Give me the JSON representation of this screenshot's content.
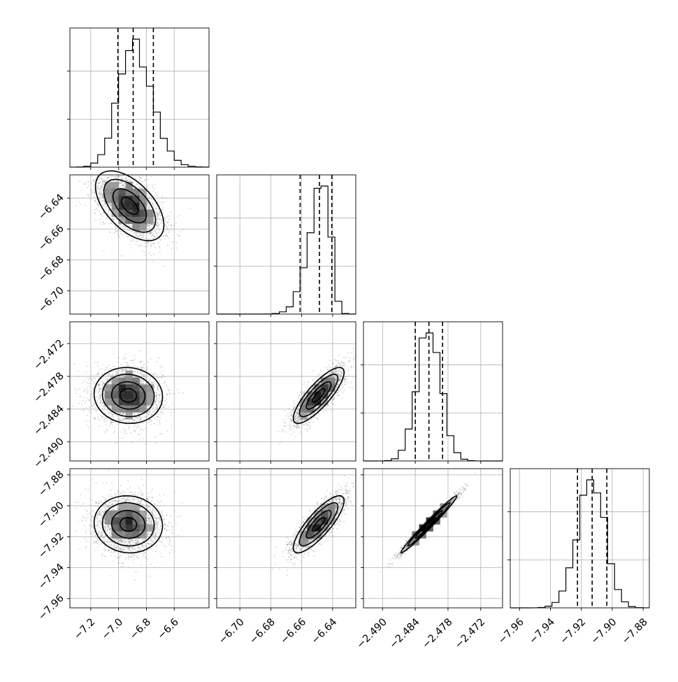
{
  "chart_data": {
    "type": "corner",
    "n_params": 4,
    "grid": true,
    "params": [
      {
        "range": [
          -7.35,
          -6.35
        ],
        "ticks": [
          -7.2,
          -7.0,
          -6.8,
          -6.6
        ],
        "tick_labels": [
          "−7.2",
          "−7.0",
          "−6.8",
          "−6.6"
        ],
        "quantiles": [
          -7.005,
          -6.895,
          -6.75
        ],
        "hist_peak": -6.9,
        "hist_sigma_left": 0.105,
        "hist_sigma_right": 0.135
      },
      {
        "range": [
          -6.715,
          -6.625
        ],
        "ticks": [
          -6.7,
          -6.68,
          -6.66,
          -6.64
        ],
        "tick_labels": [
          "−6.70",
          "−6.68",
          "−6.66",
          "−6.64"
        ],
        "quantiles": [
          -6.661,
          -6.6485,
          -6.6405
        ],
        "hist_peak": -6.645,
        "hist_sigma_left": 0.0095,
        "hist_sigma_right": 0.004
      },
      {
        "range": [
          -2.4935,
          -2.468
        ],
        "ticks": [
          -2.49,
          -2.484,
          -2.478,
          -2.472
        ],
        "tick_labels": [
          "−2.490",
          "−2.484",
          "−2.478",
          "−2.472"
        ],
        "quantiles": [
          -2.484,
          -2.4815,
          -2.479
        ],
        "hist_peak": -2.4815,
        "hist_sigma_left": 0.0022,
        "hist_sigma_right": 0.0022
      },
      {
        "range": [
          -7.966,
          -7.876
        ],
        "ticks": [
          -7.96,
          -7.94,
          -7.92,
          -7.9,
          -7.88
        ],
        "tick_labels": [
          "−7.96",
          "−7.94",
          "−7.92",
          "−7.90",
          "−7.88"
        ],
        "quantiles": [
          -7.9225,
          -7.913,
          -7.9035
        ],
        "hist_peak": -7.913,
        "hist_sigma_left": 0.0095,
        "hist_sigma_right": 0.0085
      }
    ],
    "pairs": [
      {
        "row": 1,
        "col": 0,
        "center": [
          -6.92,
          -6.645
        ],
        "sx": 0.12,
        "sy": 0.011,
        "rho": -0.55
      },
      {
        "row": 2,
        "col": 0,
        "center": [
          -6.93,
          -2.4815
        ],
        "sx": 0.12,
        "sy": 0.0025,
        "rho": -0.05
      },
      {
        "row": 2,
        "col": 1,
        "center": [
          -6.649,
          -2.4815
        ],
        "sx": 0.008,
        "sy": 0.0025,
        "rho": 0.82
      },
      {
        "row": 3,
        "col": 0,
        "center": [
          -6.93,
          -7.912
        ],
        "sx": 0.12,
        "sy": 0.009,
        "rho": -0.05
      },
      {
        "row": 3,
        "col": 1,
        "center": [
          -6.649,
          -7.912
        ],
        "sx": 0.008,
        "sy": 0.009,
        "rho": 0.82
      },
      {
        "row": 3,
        "col": 2,
        "center": [
          -2.4815,
          -7.912
        ],
        "sx": 0.0025,
        "sy": 0.009,
        "rho": 0.985
      }
    ],
    "colors": {
      "axes": "#000000",
      "grid": "#b0b0b0",
      "scatter": "#808080",
      "contour": "#000000",
      "hist": "#000000"
    }
  }
}
